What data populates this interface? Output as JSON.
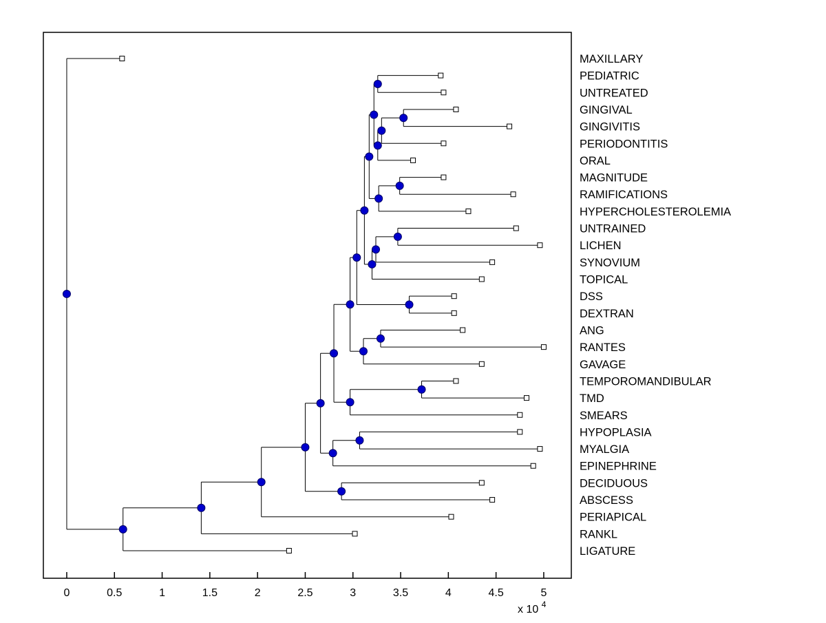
{
  "figure": {
    "background": "#ffffff",
    "plot_area_border": "#000000"
  },
  "chart_data": {
    "type": "dendrogram",
    "subtype": "phylogenetic tree (MATLAB phytree-style), root at left, leaves at right",
    "title": "",
    "xlabel": "",
    "ylabel": "",
    "grid": false,
    "legend": null,
    "x_axis": {
      "tick_labels": [
        "0",
        "0.5",
        "1",
        "1.5",
        "2",
        "2.5",
        "3",
        "3.5",
        "4",
        "4.5",
        "5"
      ],
      "tick_values": [
        0,
        0.5,
        1,
        1.5,
        2,
        2.5,
        3,
        3.5,
        4,
        4.5,
        5
      ],
      "range": [
        -0.245,
        5.289
      ],
      "exponent_text": "x 10",
      "exponent_power": "4",
      "unit_multiplier": 10000
    },
    "leaves": [
      {
        "id": "L0",
        "label": "MAXILLARY",
        "x": 0.58
      },
      {
        "id": "L1",
        "label": "PEDIATRIC",
        "x": 3.92
      },
      {
        "id": "L2",
        "label": "UNTREATED",
        "x": 3.95
      },
      {
        "id": "L3",
        "label": "GINGIVAL",
        "x": 4.08
      },
      {
        "id": "L4",
        "label": "GINGIVITIS",
        "x": 4.64
      },
      {
        "id": "L5",
        "label": "PERIODONTITIS",
        "x": 3.95
      },
      {
        "id": "L6",
        "label": "ORAL",
        "x": 3.63
      },
      {
        "id": "L7",
        "label": "MAGNITUDE",
        "x": 3.95
      },
      {
        "id": "L8",
        "label": "RAMIFICATIONS",
        "x": 4.68
      },
      {
        "id": "L9",
        "label": "HYPERCHOLESTEROLEMIA",
        "x": 4.21
      },
      {
        "id": "L10",
        "label": "UNTRAINED",
        "x": 4.71
      },
      {
        "id": "L11",
        "label": "LICHEN",
        "x": 4.96
      },
      {
        "id": "L12",
        "label": "SYNOVIUM",
        "x": 4.46
      },
      {
        "id": "L13",
        "label": "TOPICAL",
        "x": 4.35
      },
      {
        "id": "L14",
        "label": "DSS",
        "x": 4.06
      },
      {
        "id": "L15",
        "label": "DEXTRAN",
        "x": 4.06
      },
      {
        "id": "L16",
        "label": "ANG",
        "x": 4.15
      },
      {
        "id": "L17",
        "label": "RANTES",
        "x": 5.0
      },
      {
        "id": "L18",
        "label": "GAVAGE",
        "x": 4.35
      },
      {
        "id": "L19",
        "label": "TEMPOROMANDIBULAR",
        "x": 4.08
      },
      {
        "id": "L20",
        "label": "TMD",
        "x": 4.82
      },
      {
        "id": "L21",
        "label": "SMEARS",
        "x": 4.75
      },
      {
        "id": "L22",
        "label": "HYPOPLASIA",
        "x": 4.75
      },
      {
        "id": "L23",
        "label": "MYALGIA",
        "x": 4.96
      },
      {
        "id": "L24",
        "label": "EPINEPHRINE",
        "x": 4.89
      },
      {
        "id": "L25",
        "label": "DECIDUOUS",
        "x": 4.35
      },
      {
        "id": "L26",
        "label": "ABSCESS",
        "x": 4.46
      },
      {
        "id": "L27",
        "label": "PERIAPICAL",
        "x": 4.03
      },
      {
        "id": "L28",
        "label": "RANKL",
        "x": 3.02
      },
      {
        "id": "L29",
        "label": "LIGATURE",
        "x": 2.33
      }
    ],
    "internal_nodes": [
      {
        "id": "N0",
        "children": [
          "L1",
          "L2"
        ],
        "x": 3.26
      },
      {
        "id": "N1",
        "children": [
          "L3",
          "L4"
        ],
        "x": 3.53
      },
      {
        "id": "N2",
        "children": [
          "N1",
          "L5"
        ],
        "x": 3.3
      },
      {
        "id": "N3",
        "children": [
          "N2",
          "L6"
        ],
        "x": 3.26
      },
      {
        "id": "N4",
        "children": [
          "N0",
          "N3"
        ],
        "x": 3.22
      },
      {
        "id": "N5",
        "children": [
          "L7",
          "L8"
        ],
        "x": 3.49
      },
      {
        "id": "N6",
        "children": [
          "N5",
          "L9"
        ],
        "x": 3.27
      },
      {
        "id": "N7",
        "children": [
          "N4",
          "N6"
        ],
        "x": 3.17
      },
      {
        "id": "N8",
        "children": [
          "L10",
          "L11"
        ],
        "x": 3.47
      },
      {
        "id": "N9",
        "children": [
          "N8",
          "L12"
        ],
        "x": 3.24
      },
      {
        "id": "N10",
        "children": [
          "N9",
          "L13"
        ],
        "x": 3.2
      },
      {
        "id": "N11",
        "children": [
          "N7",
          "N10"
        ],
        "x": 3.12
      },
      {
        "id": "N12",
        "children": [
          "L14",
          "L15"
        ],
        "x": 3.59
      },
      {
        "id": "N13",
        "children": [
          "N11",
          "N12"
        ],
        "x": 3.04
      },
      {
        "id": "N14",
        "children": [
          "L16",
          "L17"
        ],
        "x": 3.29
      },
      {
        "id": "N15",
        "children": [
          "N14",
          "L18"
        ],
        "x": 3.11
      },
      {
        "id": "N16",
        "children": [
          "N13",
          "N15"
        ],
        "x": 2.97
      },
      {
        "id": "N17",
        "children": [
          "L19",
          "L20"
        ],
        "x": 3.72
      },
      {
        "id": "N18",
        "children": [
          "N17",
          "L21"
        ],
        "x": 2.97
      },
      {
        "id": "N19",
        "children": [
          "N16",
          "N18"
        ],
        "x": 2.8
      },
      {
        "id": "N20",
        "children": [
          "L22",
          "L23"
        ],
        "x": 3.07
      },
      {
        "id": "N21",
        "children": [
          "N20",
          "L24"
        ],
        "x": 2.79
      },
      {
        "id": "N22",
        "children": [
          "N19",
          "N21"
        ],
        "x": 2.66
      },
      {
        "id": "N23",
        "children": [
          "L25",
          "L26"
        ],
        "x": 2.88
      },
      {
        "id": "N24",
        "children": [
          "N22",
          "N23"
        ],
        "x": 2.5
      },
      {
        "id": "N25",
        "children": [
          "N24",
          "L27"
        ],
        "x": 2.04
      },
      {
        "id": "N26",
        "children": [
          "N25",
          "L28"
        ],
        "x": 1.41
      },
      {
        "id": "N27",
        "children": [
          "N26",
          "L29"
        ],
        "x": 0.59
      },
      {
        "id": "N28",
        "children": [
          "L0",
          "N27"
        ],
        "x": 0.0
      }
    ],
    "styles": {
      "branch_color": "#000000",
      "branch_width": 1,
      "internal_marker_fill": "#0000CC",
      "internal_marker_stroke": "#000066",
      "internal_marker_radius": 5.5,
      "leaf_marker_fill": "#ffffff",
      "leaf_marker_stroke": "#000000",
      "leaf_marker_size": 7,
      "label_color": "#000000",
      "tick_color": "#000000"
    }
  }
}
